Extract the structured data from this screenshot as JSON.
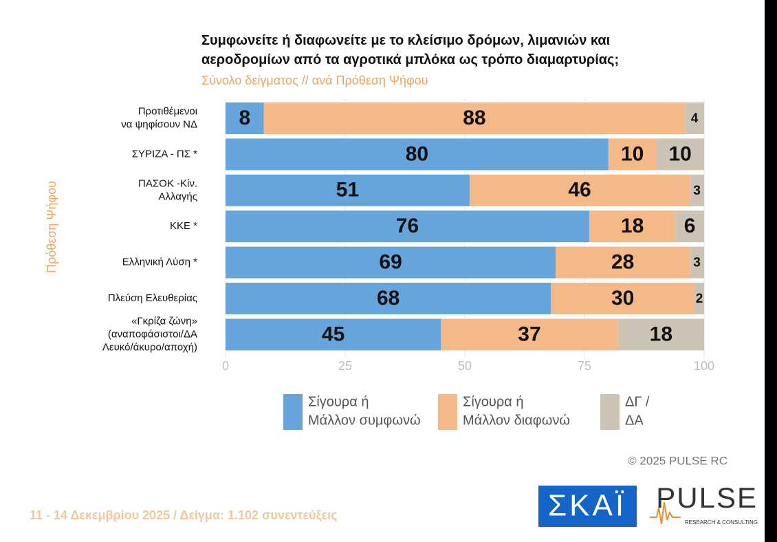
{
  "chart_data": {
    "type": "stacked-bar-horizontal",
    "title": "Συμφωνείτε ή διαφωνείτε με το κλείσιμο δρόμων, λιμανιών και\nαεροδρομίων από τα αγροτικά μπλόκα ως τρόπο διαμαρτυρίας;",
    "subtitle": "Σύνολο δείγματος // ανά Πρόθεση Ψήφου",
    "y_label": "Πρόθεση Ψήφου",
    "categories": [
      "Προτιθέμενοι\nνα ψηφίσουν ΝΔ",
      "ΣΥΡΙΖΑ - ΠΣ *",
      "ΠΑΣΟΚ -Κίν.\nΑλλαγής",
      "ΚΚΕ *",
      "Ελληνική Λύση *",
      "Πλεύση Ελευθερίας",
      "«Γκρίζα ζώνη»\n(αναποφάσιστοι/ΔΑ\nΛευκό/άκυρο/αποχή)"
    ],
    "series": [
      {
        "name": "Σίγουρα ή\nΜάλλον συμφωνώ",
        "color": "#66a5dc",
        "values": [
          8,
          80,
          51,
          76,
          69,
          68,
          45
        ]
      },
      {
        "name": "Σίγουρα ή\nΜάλλον διαφωνώ",
        "color": "#f5b887",
        "values": [
          88,
          10,
          46,
          18,
          28,
          30,
          37
        ]
      },
      {
        "name": "ΔΓ /\nΔΑ",
        "color": "#cdc3b5",
        "values": [
          4,
          10,
          3,
          6,
          3,
          2,
          18
        ]
      }
    ],
    "xlim": [
      0,
      100
    ],
    "xticks": [
      0,
      25,
      50,
      75,
      100
    ]
  },
  "footer": "11 - 14 Δεκεμβρίου 2025  /  Δείγμα:  1.102 συνεντεύξεις",
  "copyright": "© 2025 PULSE RC",
  "logos": {
    "skai": "ΣΚΑΪ",
    "pulse": "PULSE",
    "pulse_tagline": "RESEARCH & CONSULTING"
  }
}
